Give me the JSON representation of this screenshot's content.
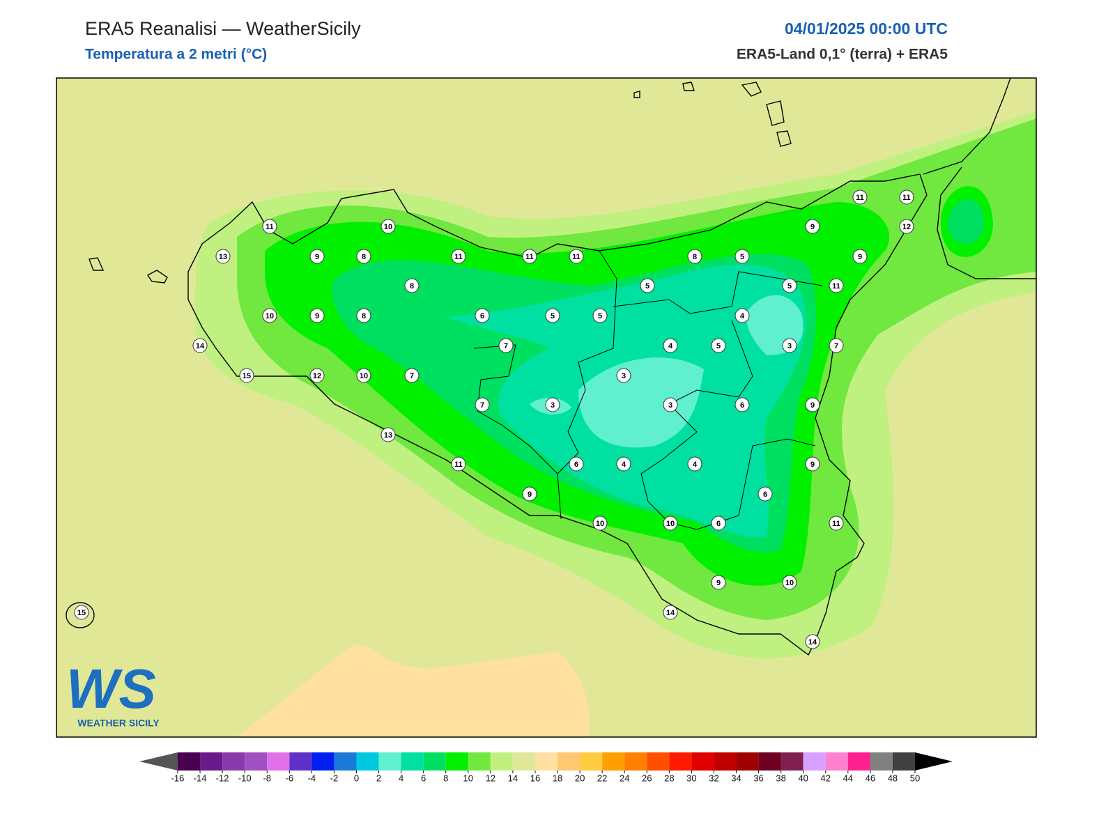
{
  "header": {
    "title": "ERA5 Reanalisi — WeatherSicily",
    "subtitle": "Temperatura a 2 metri (°C)",
    "datetime": "04/01/2025 00:00 UTC",
    "source": "ERA5-Land 0,1° (terra) + ERA5"
  },
  "map": {
    "stations": [
      11,
      10,
      13,
      9,
      8,
      11,
      11,
      11,
      8,
      5,
      9,
      11,
      11,
      12,
      9,
      8,
      5,
      5,
      11,
      10,
      9,
      8,
      6,
      5,
      5,
      4,
      14,
      7,
      4,
      5,
      3,
      7,
      15,
      12,
      10,
      7,
      3,
      7,
      3,
      3,
      6,
      9,
      13,
      11,
      6,
      4,
      4,
      9,
      9,
      6,
      10,
      10,
      6,
      11,
      9,
      10,
      14,
      14,
      15
    ],
    "colorbar": {
      "ticks": [
        -16,
        -14,
        -12,
        -10,
        -8,
        -6,
        -4,
        -2,
        0,
        2,
        4,
        6,
        8,
        10,
        12,
        14,
        16,
        18,
        20,
        22,
        24,
        26,
        28,
        30,
        32,
        34,
        36,
        38,
        40,
        42,
        44,
        46,
        48,
        50
      ],
      "colors": [
        "#4a0050",
        "#6a1a8a",
        "#8a3aa8",
        "#a050c0",
        "#e070e8",
        "#6030c8",
        "#0020f0",
        "#1a7ad8",
        "#00c8e0",
        "#60f0d0",
        "#00e0a0",
        "#00e060",
        "#00f000",
        "#70e840",
        "#c0f080",
        "#e0e898",
        "#ffe0a0",
        "#ffc870",
        "#ffcc40",
        "#ffa000",
        "#ff8000",
        "#ff5000",
        "#ff1a00",
        "#e00000",
        "#c00000",
        "#a00000",
        "#700020",
        "#802050",
        "#d8a0ff",
        "#ff80d0",
        "#ff2090",
        "#808080",
        "#404040"
      ],
      "under_color": "#555555",
      "over_color": "#000000"
    }
  },
  "logo": {
    "mark": "WS",
    "text": "WEATHER SICILY"
  }
}
